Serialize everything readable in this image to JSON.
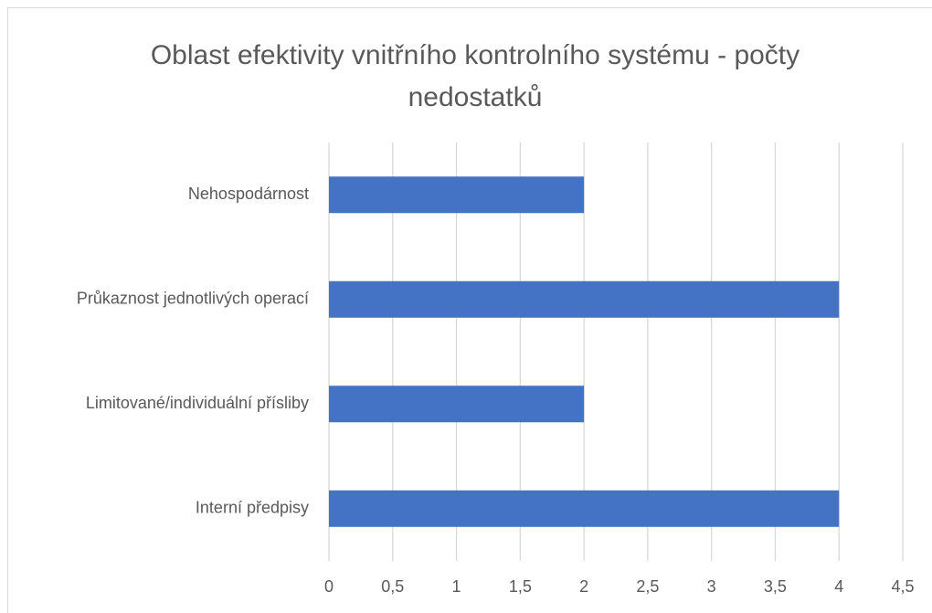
{
  "chart_data": {
    "type": "barh",
    "title": "Oblast efektivity vnitřního kontrolního systému - počty nedostatků",
    "categories": [
      "Nehospodárnost",
      "Průkaznost jednotlivých operací",
      "Limitované/individuální přísliby",
      "Interní předpisy"
    ],
    "values": [
      2,
      4,
      2,
      4
    ],
    "color": "#4472c4",
    "xlim": [
      0,
      4.5
    ],
    "xticks": [
      0,
      {
        "value": 0.5,
        "label": "0,5"
      },
      1,
      {
        "value": 1.5,
        "label": "1,5"
      },
      2,
      {
        "value": 2.5,
        "label": "2,5"
      },
      3,
      {
        "value": 3.5,
        "label": "3,5"
      },
      4,
      {
        "value": 4.5,
        "label": "4,5"
      }
    ],
    "grid": true
  }
}
